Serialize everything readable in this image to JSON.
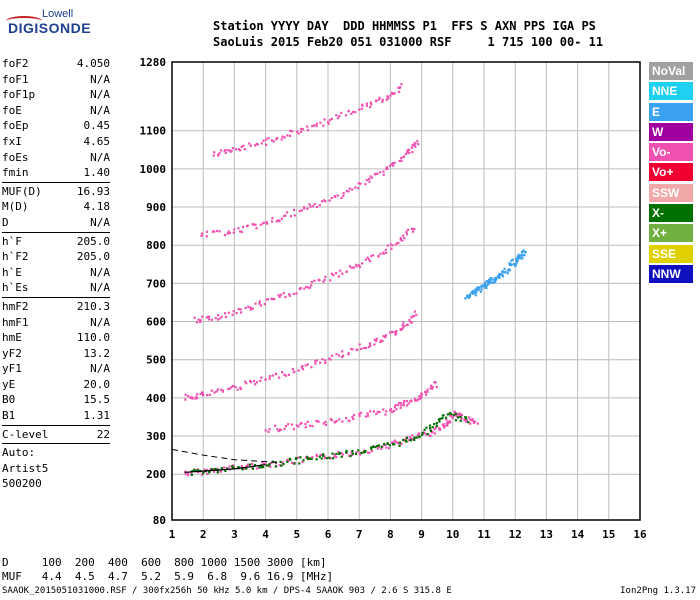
{
  "logo": {
    "line1": "Lowell",
    "line2": "DIGISONDE"
  },
  "header": {
    "line1": "Station YYYY DAY  DDD HHMMSS P1  FFS S AXN PPS IGA PS",
    "line2": "SaoLuis 2015 Feb20 051 031000 RSF     1 715 100 00- 11"
  },
  "params": [
    {
      "k": "foF2",
      "v": "4.050"
    },
    {
      "k": "foF1",
      "v": "N/A"
    },
    {
      "k": "foF1p",
      "v": "N/A"
    },
    {
      "k": "foE",
      "v": "N/A"
    },
    {
      "k": "foEp",
      "v": "0.45"
    },
    {
      "k": "fxI",
      "v": "4.65"
    },
    {
      "k": "foEs",
      "v": "N/A"
    },
    {
      "k": "fmin",
      "v": "1.40"
    },
    {
      "sep": true
    },
    {
      "k": "MUF(D)",
      "v": "16.93"
    },
    {
      "k": "M(D)",
      "v": "4.18"
    },
    {
      "k": "D",
      "v": "N/A"
    },
    {
      "sep": true
    },
    {
      "k": "h`F",
      "v": "205.0"
    },
    {
      "k": "h`F2",
      "v": "205.0"
    },
    {
      "k": "h`E",
      "v": "N/A"
    },
    {
      "k": "h`Es",
      "v": "N/A"
    },
    {
      "sep": true
    },
    {
      "k": "hmF2",
      "v": "210.3"
    },
    {
      "k": "hmF1",
      "v": "N/A"
    },
    {
      "k": "hmE",
      "v": "110.0"
    },
    {
      "k": "yF2",
      "v": "13.2"
    },
    {
      "k": "yF1",
      "v": "N/A"
    },
    {
      "k": "yE",
      "v": "20.0"
    },
    {
      "k": "B0",
      "v": "15.5"
    },
    {
      "k": "B1",
      "v": "1.31"
    },
    {
      "sep": true
    },
    {
      "k": "C-level",
      "v": "22"
    },
    {
      "sep": true
    }
  ],
  "auto": [
    "Auto:",
    "Artist5",
    "500200"
  ],
  "legend": [
    {
      "label": "NoVal",
      "color": "#a0a0a0"
    },
    {
      "label": "NNE",
      "color": "#20d0f0"
    },
    {
      "label": "E",
      "color": "#3aa0f0"
    },
    {
      "label": "W",
      "color": "#a000a0"
    },
    {
      "label": "Vo-",
      "color": "#f050b0"
    },
    {
      "label": "Vo+",
      "color": "#f00030"
    },
    {
      "label": "SSW",
      "color": "#f0a8a8"
    },
    {
      "label": "X-",
      "color": "#007000"
    },
    {
      "label": "X+",
      "color": "#70b040"
    },
    {
      "label": "SSE",
      "color": "#e0d000"
    },
    {
      "label": "NNW",
      "color": "#1010c0"
    }
  ],
  "bottom": {
    "line1": "D     100  200  400  600  800 1000 1500 3000 [km]",
    "line2": "MUF   4.4  4.5  4.7  5.2  5.9  6.8  9.6 16.9 [MHz]"
  },
  "footer": {
    "left": "SAAOK_2015051031000.RSF / 300fx256h 50 kHz 5.0 km / DPS-4 SAAOK 903 / 2.6 S 315.8 E",
    "right": "Ion2Png 1.3.17"
  },
  "chart_data": {
    "type": "scatter",
    "xlim": [
      1,
      16
    ],
    "ylim": [
      80,
      1280
    ],
    "x_ticks": [
      1,
      2,
      3,
      4,
      5,
      6,
      7,
      8,
      9,
      10,
      11,
      12,
      13,
      14,
      15,
      16
    ],
    "y_ticks": [
      80,
      200,
      300,
      400,
      500,
      600,
      700,
      800,
      900,
      1000,
      1100,
      1280
    ],
    "grid": true,
    "traces": [
      {
        "name": "F2 trace O-mode",
        "color": "#f050b0",
        "x": [
          1.4,
          2.0,
          3.0,
          4.0,
          5.0,
          6.0,
          7.0,
          8.0,
          8.6,
          9.2,
          9.7,
          10.0,
          10.3,
          10.8
        ],
        "y": [
          205,
          210,
          220,
          228,
          238,
          250,
          262,
          280,
          295,
          310,
          330,
          360,
          350,
          335
        ]
      },
      {
        "name": "F2 trace X-mode",
        "color": "#007000",
        "x": [
          1.6,
          2.5,
          3.5,
          4.5,
          5.5,
          6.5,
          7.5,
          8.5,
          9.2,
          9.8,
          10.5
        ],
        "y": [
          208,
          214,
          222,
          232,
          244,
          256,
          270,
          290,
          320,
          360,
          340
        ]
      },
      {
        "name": "2nd hop",
        "color": "#f050b0",
        "x": [
          1.4,
          2.0,
          3.0,
          4.0,
          5.0,
          6.0,
          7.0,
          7.8,
          8.4,
          8.8
        ],
        "y": [
          405,
          412,
          430,
          452,
          478,
          505,
          535,
          560,
          590,
          625
        ]
      },
      {
        "name": "3rd hop",
        "color": "#f050b0",
        "x": [
          1.7,
          2.5,
          3.5,
          4.5,
          5.5,
          6.5,
          7.4,
          8.2,
          8.8
        ],
        "y": [
          605,
          615,
          640,
          668,
          700,
          735,
          770,
          810,
          850
        ]
      },
      {
        "name": "4th hop",
        "color": "#f050b0",
        "x": [
          1.9,
          3.0,
          4.0,
          5.0,
          6.0,
          7.0,
          7.8,
          8.5,
          8.9
        ],
        "y": [
          830,
          840,
          860,
          890,
          920,
          960,
          1000,
          1040,
          1080
        ]
      },
      {
        "name": "5th hop",
        "color": "#f050b0",
        "x": [
          2.3,
          3.0,
          4.0,
          5.0,
          6.0,
          7.0,
          7.8,
          8.4
        ],
        "y": [
          1040,
          1050,
          1075,
          1100,
          1130,
          1160,
          1190,
          1220
        ]
      },
      {
        "name": "spread 300-400",
        "color": "#f050b0",
        "x": [
          4.0,
          5.0,
          6.0,
          7.0,
          8.0,
          8.5,
          9.0,
          9.5
        ],
        "y": [
          320,
          330,
          340,
          355,
          370,
          390,
          410,
          440
        ]
      },
      {
        "name": "oblique",
        "color": "#3aa0f0",
        "x": [
          10.4,
          10.6,
          10.9,
          11.1,
          11.3,
          11.6,
          11.9,
          12.1,
          12.3
        ],
        "y": [
          665,
          675,
          690,
          705,
          715,
          730,
          755,
          770,
          790
        ]
      }
    ],
    "profile": {
      "x": [
        1.4,
        2.0,
        3.0,
        4.0
      ],
      "y": [
        205,
        208,
        214,
        225
      ]
    },
    "profile_dash": {
      "x": [
        1.0,
        2.0,
        3.0,
        4.0,
        4.5
      ],
      "y": [
        265,
        250,
        238,
        233,
        230
      ]
    }
  }
}
